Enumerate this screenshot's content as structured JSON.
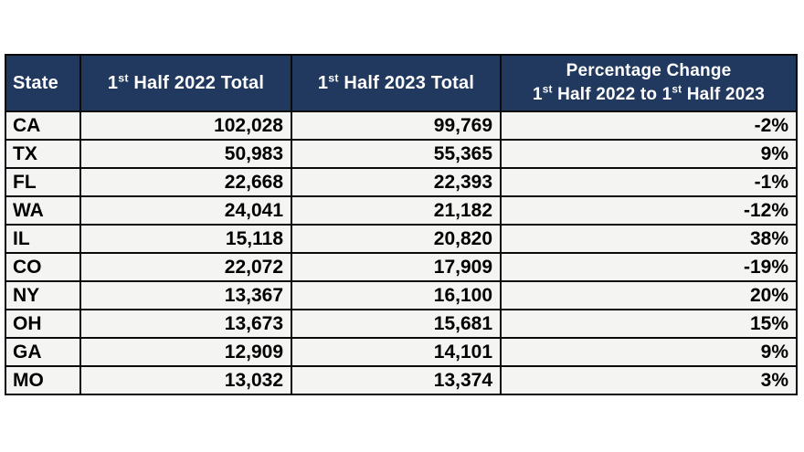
{
  "colors": {
    "page-bg": "#FFFFFF",
    "header-bg": "#21395E",
    "header-text": "#FFFFFF",
    "row-bg": "#F4F4F2",
    "row-text": "#000000",
    "border": "#0A0A0A"
  },
  "table": {
    "header": {
      "state": "State",
      "h2022": {
        "num": "1",
        "sup": "st",
        "rest": " Half 2022 Total"
      },
      "h2023": {
        "num": "1",
        "sup": "st",
        "rest": " Half 2023 Total"
      },
      "pct_line1": "Percentage Change",
      "pct_line2": {
        "p1": "1",
        "sup1": "st",
        "p2": " Half 2022 to 1",
        "sup2": "st",
        "p3": " Half 2023"
      }
    },
    "rows": [
      {
        "state": "CA",
        "h2022": "102,028",
        "h2023": "99,769",
        "pct": "-2%"
      },
      {
        "state": "TX",
        "h2022": "50,983",
        "h2023": "55,365",
        "pct": "9%"
      },
      {
        "state": "FL",
        "h2022": "22,668",
        "h2023": "22,393",
        "pct": "-1%"
      },
      {
        "state": "WA",
        "h2022": "24,041",
        "h2023": "21,182",
        "pct": "-12%"
      },
      {
        "state": "IL",
        "h2022": "15,118",
        "h2023": "20,820",
        "pct": "38%"
      },
      {
        "state": "CO",
        "h2022": "22,072",
        "h2023": "17,909",
        "pct": "-19%"
      },
      {
        "state": "NY",
        "h2022": "13,367",
        "h2023": "16,100",
        "pct": "20%"
      },
      {
        "state": "OH",
        "h2022": "13,673",
        "h2023": "15,681",
        "pct": "15%"
      },
      {
        "state": "GA",
        "h2022": "12,909",
        "h2023": "14,101",
        "pct": "9%"
      },
      {
        "state": "MO",
        "h2022": "13,032",
        "h2023": "13,374",
        "pct": "3%"
      }
    ]
  },
  "chart_data": {
    "type": "table",
    "columns": [
      "State",
      "1st Half 2022 Total",
      "1st Half 2023 Total",
      "Percentage Change 1st Half 2022 to 1st Half 2023"
    ],
    "rows": [
      [
        "CA",
        102028,
        99769,
        "-2%"
      ],
      [
        "TX",
        50983,
        55365,
        "9%"
      ],
      [
        "FL",
        22668,
        22393,
        "-1%"
      ],
      [
        "WA",
        24041,
        21182,
        "-12%"
      ],
      [
        "IL",
        15118,
        20820,
        "38%"
      ],
      [
        "CO",
        22072,
        17909,
        "-19%"
      ],
      [
        "NY",
        13367,
        16100,
        "20%"
      ],
      [
        "OH",
        13673,
        15681,
        "15%"
      ],
      [
        "GA",
        12909,
        14101,
        "9%"
      ],
      [
        "MO",
        13032,
        13374,
        "3%"
      ]
    ]
  }
}
